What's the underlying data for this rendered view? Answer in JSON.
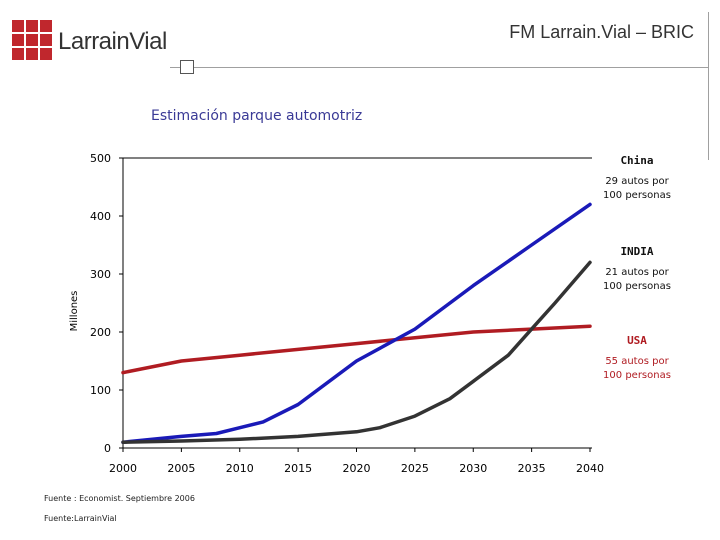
{
  "header": {
    "logo_text": "LarrainVial",
    "title": "FM Larrain.Vial – BRIC",
    "accent_color": "#c0272d"
  },
  "chart_data": {
    "type": "line",
    "title": "Estimación parque automotriz",
    "xlabel": "",
    "ylabel": "Millones",
    "xlim": [
      2000,
      2040
    ],
    "ylim": [
      0,
      500
    ],
    "x_ticks": [
      "2000",
      "2005",
      "2010",
      "2015",
      "2020",
      "2025",
      "2030",
      "2035",
      "2040"
    ],
    "y_ticks": [
      "0",
      "100",
      "200",
      "300",
      "400",
      "500"
    ],
    "grid": false,
    "series": [
      {
        "name": "USA",
        "color": "#b01c22",
        "x": [
          2000,
          2005,
          2010,
          2015,
          2020,
          2025,
          2030,
          2035,
          2040
        ],
        "values": [
          130,
          150,
          160,
          170,
          180,
          190,
          200,
          205,
          210
        ]
      },
      {
        "name": "China",
        "color": "#1a1ab8",
        "x": [
          2000,
          2005,
          2008,
          2010,
          2012,
          2015,
          2020,
          2025,
          2030,
          2035,
          2040
        ],
        "values": [
          10,
          20,
          25,
          35,
          45,
          75,
          150,
          205,
          280,
          350,
          420
        ]
      },
      {
        "name": "INDIA",
        "color": "#333333",
        "x": [
          2000,
          2005,
          2010,
          2015,
          2020,
          2022,
          2025,
          2028,
          2030,
          2033,
          2035,
          2037,
          2040
        ],
        "values": [
          10,
          12,
          15,
          20,
          28,
          35,
          55,
          85,
          115,
          160,
          205,
          250,
          320
        ]
      }
    ],
    "annotations": [
      {
        "label": "China",
        "text": "29 autos por 100 personas",
        "line1": "29 autos por",
        "line2": "100 personas",
        "color": "#111111"
      },
      {
        "label": "INDIA",
        "text": "21 autos por 100 personas",
        "line1": "21 autos por",
        "line2": "100 personas",
        "color": "#111111"
      },
      {
        "label": "USA",
        "text": "55 autos por 100 personas",
        "line1": "55 autos por",
        "line2": "100 personas",
        "color": "#b01c22"
      }
    ]
  },
  "sources": [
    "Fuente : Economist. Septiembre 2006",
    "Fuente:LarrainVial"
  ]
}
